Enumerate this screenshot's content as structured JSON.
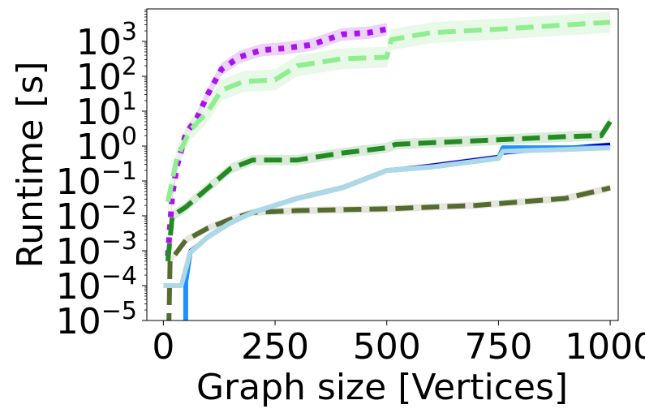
{
  "chart_data": {
    "type": "line",
    "title": "",
    "xlabel": "Graph size [Vertices]",
    "ylabel": "Runtime [s]",
    "xlim": [
      -37,
      1018
    ],
    "ylim_log10": [
      -5,
      3.93
    ],
    "yscale": "log",
    "grid": false,
    "legend": "none",
    "x_ticks": [
      0,
      250,
      500,
      750,
      1000
    ],
    "x_tick_labels": [
      "0",
      "250",
      "500",
      "750",
      "1000"
    ],
    "y_ticks_log10": [
      3,
      2,
      1,
      0,
      -1,
      -2,
      -3,
      -4,
      -5
    ],
    "y_tick_base": "10",
    "y_tick_exponents": [
      "3",
      "2",
      "1",
      "0",
      "−1",
      "−2",
      "−3",
      "−4",
      "−5"
    ],
    "series": [
      {
        "name": "purple-dotted",
        "color": "#aa11ee",
        "band_color": "#e6c8f8",
        "style": "dotted",
        "band": 0.18,
        "x": [
          10,
          20,
          30,
          50,
          75,
          100,
          130,
          170,
          220,
          270,
          330,
          400,
          460,
          500
        ],
        "log10_y": [
          -3.15,
          -1.4,
          -0.6,
          0.35,
          0.8,
          1.5,
          2.2,
          2.55,
          2.75,
          2.8,
          2.9,
          3.2,
          3.25,
          3.35
        ]
      },
      {
        "name": "lightgreen-dashed",
        "color": "#90ee90",
        "band_color": "#e2f8e2",
        "style": "dashed",
        "band": 0.3,
        "x": [
          10,
          30,
          60,
          100,
          130,
          180,
          250,
          300,
          400,
          500,
          510,
          600,
          750,
          1000
        ],
        "log10_y": [
          -1.6,
          -0.35,
          0.45,
          1.0,
          1.6,
          1.85,
          1.9,
          2.3,
          2.5,
          2.55,
          3.05,
          3.25,
          3.35,
          3.55
        ]
      },
      {
        "name": "green-dashed",
        "color": "#228b22",
        "band_color": "#d2e6d2",
        "style": "dashed",
        "band": 0.15,
        "x": [
          10,
          20,
          50,
          100,
          150,
          200,
          300,
          400,
          500,
          520,
          700,
          900,
          980,
          1000
        ],
        "log10_y": [
          -3.3,
          -2.0,
          -1.75,
          -1.2,
          -0.65,
          -0.4,
          -0.4,
          -0.2,
          -0.05,
          0.05,
          0.15,
          0.27,
          0.3,
          0.7
        ]
      },
      {
        "name": "olive-dashed",
        "color": "#556b2f",
        "band_color": "#dde0d5",
        "style": "dashed",
        "band": 0.1,
        "x": [
          12,
          15,
          50,
          100,
          150,
          200,
          300,
          500,
          600,
          700,
          900,
          1000
        ],
        "log10_y": [
          -5.3,
          -3.3,
          -2.7,
          -2.35,
          -2.1,
          -1.9,
          -1.85,
          -1.8,
          -1.75,
          -1.7,
          -1.5,
          -1.2
        ]
      },
      {
        "name": "navy-solid",
        "color": "#0000cd",
        "band_color": "#b8b8ee",
        "style": "solid-thin",
        "band": 0.06,
        "x": [
          45,
          60,
          100,
          150,
          200,
          300,
          400,
          500,
          600,
          750,
          760,
          900,
          1000
        ],
        "log10_y": [
          -3.9,
          -3.0,
          -2.6,
          -2.2,
          -1.9,
          -1.48,
          -1.18,
          -0.7,
          -0.55,
          -0.3,
          -0.2,
          -0.05,
          0.05
        ]
      },
      {
        "name": "dodgerblue-solid",
        "color": "#1e90ff",
        "band_color": "#cfe6ff",
        "style": "solid",
        "band": 0.0,
        "x": [
          50,
          50,
          60,
          100,
          150,
          200,
          300,
          400,
          500,
          600,
          750,
          760,
          900,
          1000
        ],
        "log10_y": [
          -5.3,
          -3.9,
          -3.05,
          -2.6,
          -2.2,
          -1.9,
          -1.5,
          -1.2,
          -0.7,
          -0.6,
          -0.35,
          -0.05,
          -0.05,
          -0.05
        ]
      },
      {
        "name": "lightblue-solid",
        "color": "#add8e6",
        "band_color": "#e4f2f7",
        "style": "solid",
        "band": 0.0,
        "x": [
          0,
          40,
          60,
          100,
          150,
          200,
          300,
          400,
          500,
          600,
          750,
          760,
          900,
          1000
        ],
        "log10_y": [
          -4,
          -4,
          -3.05,
          -2.6,
          -2.2,
          -1.9,
          -1.5,
          -1.2,
          -0.7,
          -0.6,
          -0.35,
          -0.15,
          -0.1,
          -0.05
        ]
      }
    ]
  }
}
